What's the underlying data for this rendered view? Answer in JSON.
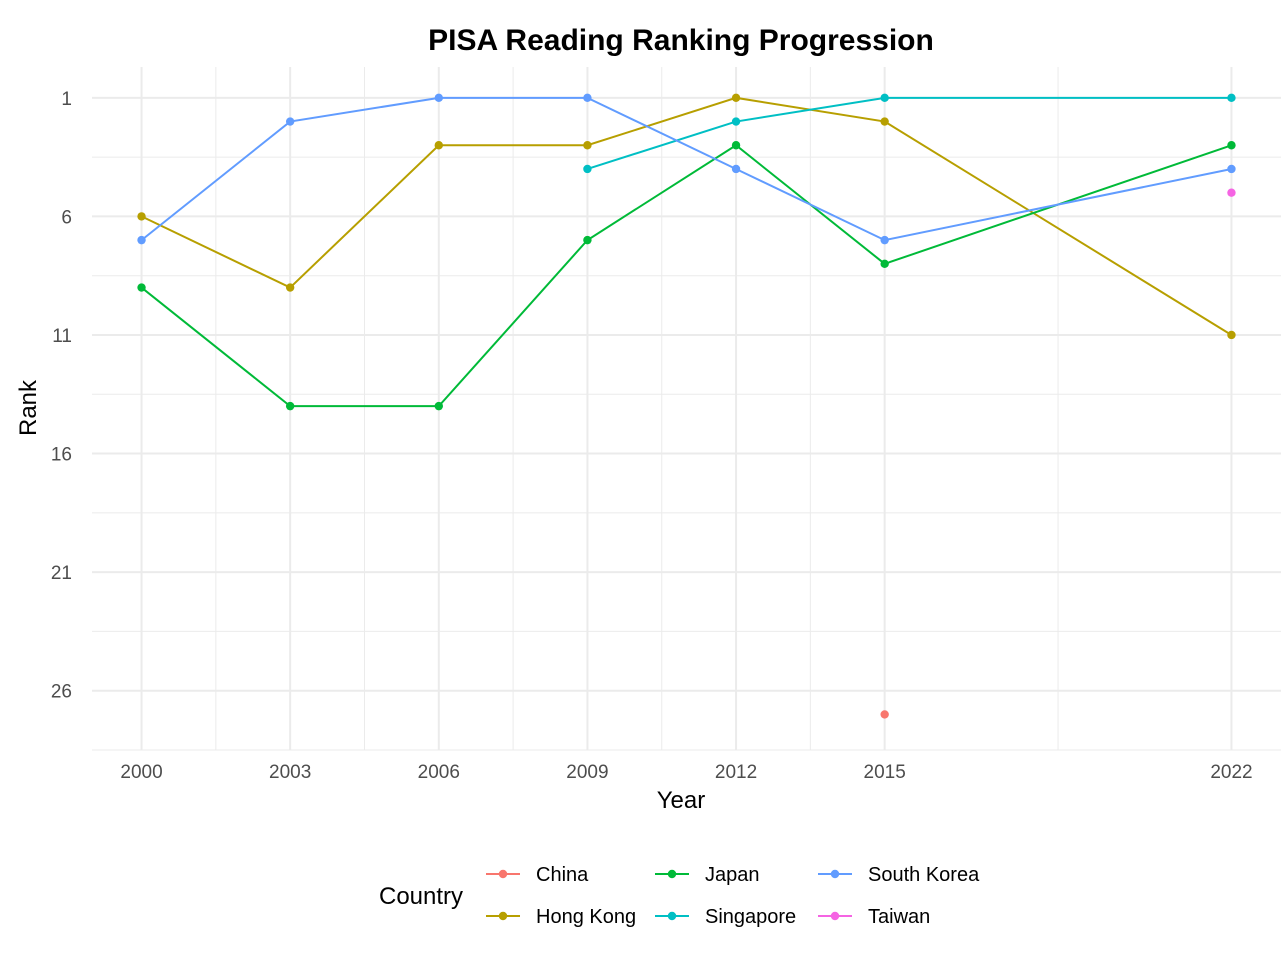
{
  "chart_data": {
    "type": "line",
    "title": "PISA Reading Ranking Progression",
    "xlabel": "Year",
    "ylabel": "Rank",
    "x_ticks": [
      2000,
      2003,
      2006,
      2009,
      2012,
      2015,
      2022
    ],
    "y_ticks": [
      1,
      6,
      11,
      16,
      21,
      26
    ],
    "xlim": [
      1999,
      2023
    ],
    "ylim": [
      28.5,
      -0.3
    ],
    "y_reversed": true,
    "grid": true,
    "legend": {
      "title": "Country",
      "position": "bottom"
    },
    "series": [
      {
        "name": "China",
        "color": "#F8766D",
        "points": [
          [
            2015,
            27
          ]
        ]
      },
      {
        "name": "Hong Kong",
        "color": "#B79F00",
        "points": [
          [
            2000,
            6
          ],
          [
            2003,
            9
          ],
          [
            2006,
            3
          ],
          [
            2009,
            3
          ],
          [
            2012,
            1
          ],
          [
            2015,
            2
          ],
          [
            2022,
            11
          ]
        ]
      },
      {
        "name": "Japan",
        "color": "#00BA38",
        "points": [
          [
            2000,
            9
          ],
          [
            2003,
            14
          ],
          [
            2006,
            14
          ],
          [
            2009,
            7
          ],
          [
            2012,
            3
          ],
          [
            2015,
            8
          ],
          [
            2022,
            3
          ]
        ]
      },
      {
        "name": "Singapore",
        "color": "#00BFC4",
        "points": [
          [
            2009,
            4
          ],
          [
            2012,
            2
          ],
          [
            2015,
            1
          ],
          [
            2022,
            1
          ]
        ]
      },
      {
        "name": "South Korea",
        "color": "#619CFF",
        "points": [
          [
            2000,
            7
          ],
          [
            2003,
            2
          ],
          [
            2006,
            1
          ],
          [
            2009,
            1
          ],
          [
            2012,
            4
          ],
          [
            2015,
            7
          ],
          [
            2022,
            4
          ]
        ]
      },
      {
        "name": "Taiwan",
        "color": "#F564E3",
        "points": [
          [
            2022,
            5
          ]
        ]
      }
    ]
  }
}
